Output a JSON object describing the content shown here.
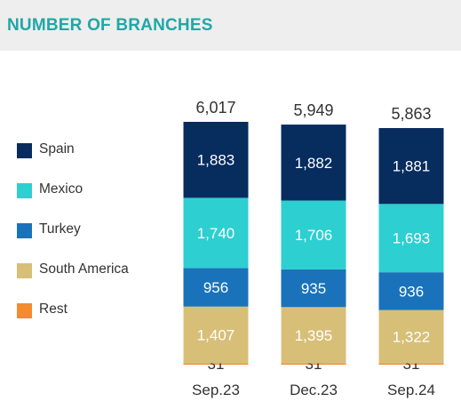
{
  "title": "NUMBER OF BRANCHES",
  "colors": {
    "Spain": "#072c5e",
    "Mexico": "#2dcfd1",
    "Turkey": "#1a73ba",
    "South America": "#d8bf78",
    "Rest": "#f28c2f"
  },
  "chart_data": {
    "type": "bar",
    "stacked": true,
    "categories": [
      "Sep.23",
      "Dec.23",
      "Sep.24"
    ],
    "series": [
      {
        "name": "Spain",
        "values": [
          1883,
          1882,
          1881
        ]
      },
      {
        "name": "Mexico",
        "values": [
          1740,
          1706,
          1693
        ]
      },
      {
        "name": "Turkey",
        "values": [
          956,
          935,
          936
        ]
      },
      {
        "name": "South America",
        "values": [
          1407,
          1395,
          1322
        ]
      },
      {
        "name": "Rest",
        "values": [
          31,
          31,
          31
        ]
      }
    ],
    "totals": [
      6017,
      5949,
      5863
    ],
    "title": "NUMBER OF BRANCHES",
    "legend": "left",
    "grid": false
  }
}
